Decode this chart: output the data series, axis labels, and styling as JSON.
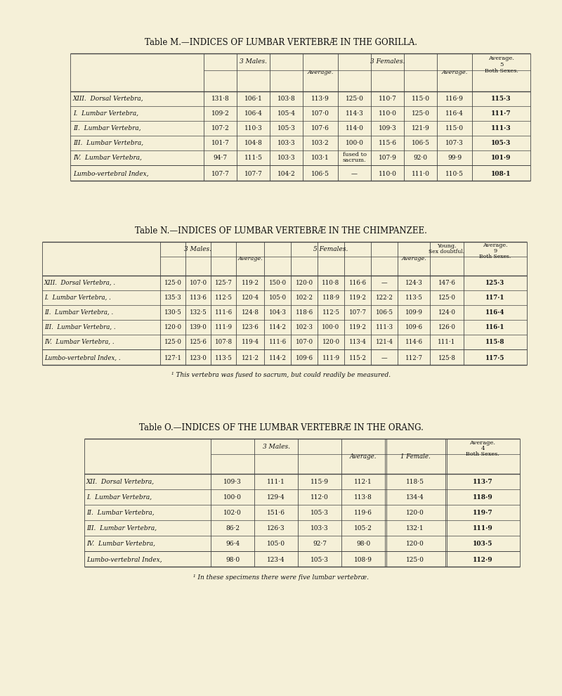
{
  "bg_color": "#f5f0d8",
  "lc": "#444444",
  "tc": "#111111",
  "title_M": "Table M.—INDICES OF LUMBAR VERTEBRÆ IN THE GORILLA.",
  "title_N": "Table N.—INDICES OF LUMBAR VERTEBRÆ IN THE CHIMPANZEE.",
  "title_O": "Table O.—INDICES OF THE LUMBAR VERTEBRÆ IN THE ORANG.",
  "footnote_N": "¹ This vertebra was fused to sacrum, but could readily be measured.",
  "footnote_O": "¹ In these specimens there were five lumbar vertebræ.",
  "tableM": {
    "rows": [
      [
        "XIII.  Dorsal Vertebra,",
        "131·8",
        "106·1",
        "103·8",
        "113·9",
        "125·0",
        "110·7",
        "115·0",
        "116·9",
        "115·3"
      ],
      [
        "I.  Lumbar Vertebra,",
        "109·2",
        "106·4",
        "105·4",
        "107·0",
        "114·3",
        "110·0",
        "125·0",
        "116·4",
        "111·7"
      ],
      [
        "II.  Lumbar Vertebra,",
        "107·2",
        "110·3",
        "105·3",
        "107·6",
        "114·0",
        "109·3",
        "121·9",
        "115·0",
        "111·3"
      ],
      [
        "III.  Lumbar Vertebra,",
        "101·7",
        "104·8",
        "103·3",
        "103·2",
        "100·0",
        "115·6",
        "106·5",
        "107·3",
        "105·3"
      ],
      [
        "IV.  Lumbar Vertebra,",
        "94·7",
        "111·5",
        "103·3",
        "103·1",
        "fused to\nsacrum.",
        "107·9",
        "92·0",
        "99·9",
        "101·9"
      ]
    ],
    "lumbo": [
      "Lumbo-vertebral Index,",
      "107·7",
      "107·7",
      "104·2",
      "106·5",
      "—",
      "110·0",
      "111·0",
      "110·5",
      "108·1"
    ]
  },
  "tableN": {
    "rows": [
      [
        "XIII.  Dorsal Vertebra, .",
        "125·0",
        "107·0",
        "125·7",
        "119·2",
        "150·0",
        "120·0",
        "110·8",
        "116·6",
        "—",
        "124·3",
        "147·6",
        "125·3"
      ],
      [
        "I.  Lumbar Vertebra, .",
        "135·3",
        "113·6",
        "112·5",
        "120·4",
        "105·0",
        "102·2",
        "118·9",
        "119·2",
        "122·2",
        "113·5",
        "125·0",
        "117·1"
      ],
      [
        "II.  Lumbar Vertebra, .",
        "130·5",
        "132·5",
        "111·6",
        "124·8",
        "104·3",
        "118·6",
        "112·5",
        "107·7",
        "106·5",
        "109·9",
        "124·0",
        "116·4"
      ],
      [
        "III.  Lumbar Vertebra, .",
        "120·0",
        "139·0",
        "111·9",
        "123·6",
        "114·2",
        "102·3",
        "100·0",
        "119·2",
        "111·3",
        "109·6",
        "126·0",
        "116·1"
      ],
      [
        "IV.  Lumbar Vertebra, .",
        "125·0",
        "125·6",
        "107·8",
        "119·4",
        "111·6",
        "107·0",
        "120·0",
        "113·4",
        "121·4",
        "114·6",
        "111·1",
        "115·8"
      ]
    ],
    "lumbo": [
      "Lumbo-vertebral Index, .",
      "127·1",
      "123·0",
      "113·5",
      "121·2",
      "114·2",
      "109·6",
      "111·9",
      "115·2",
      "—",
      "112·7",
      "125·8",
      "117·5"
    ]
  },
  "tableO": {
    "rows": [
      [
        "XII.  Dorsal Vertebra,",
        "109·3",
        "111·1",
        "115·9",
        "112·1",
        "118·5",
        "113·7"
      ],
      [
        "I.  Lumbar Vertebra,",
        "100·0",
        "129·4",
        "112·0",
        "113·8",
        "134·4",
        "118·9"
      ],
      [
        "II.  Lumbar Vertebra,",
        "102·0",
        "151·6",
        "105·3",
        "119·6",
        "120·0",
        "119·7"
      ],
      [
        "III.  Lumbar Vertebra,",
        "86·2",
        "126·3",
        "103·3",
        "105·2",
        "132·1",
        "111·9"
      ],
      [
        "IV.  Lumbar Vertebra,",
        "96·4",
        "105·0",
        "92·7",
        "98·0",
        "120·0",
        "103·5"
      ]
    ],
    "lumbo": [
      "Lumbo-vertebral Index,",
      "98·0",
      "123·4",
      "105·3",
      "108·9",
      "125·0",
      "112·9"
    ]
  }
}
